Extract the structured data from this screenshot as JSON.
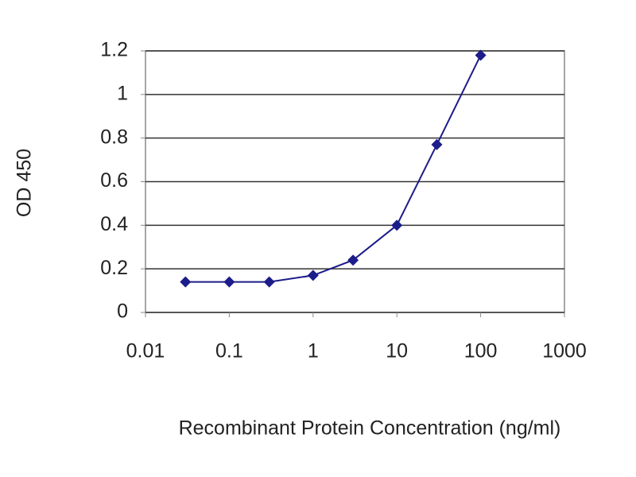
{
  "chart_data": {
    "type": "line",
    "x_label": "Recombinant Protein Concentration (ng/ml)",
    "y_label": "OD 450",
    "x": [
      0.03,
      0.1,
      0.3,
      1,
      3,
      10,
      30,
      100
    ],
    "values": [
      0.14,
      0.14,
      0.14,
      0.17,
      0.24,
      0.4,
      0.77,
      1.18
    ],
    "color": "#1c1c8a",
    "xscale": "log",
    "xlim": [
      0.01,
      1000
    ],
    "xticks": [
      0.01,
      0.1,
      1,
      10,
      100,
      1000
    ],
    "ylim": [
      0,
      1.2
    ],
    "yticks": [
      0,
      0.2,
      0.4,
      0.6,
      0.8,
      1,
      1.2
    ],
    "grid": true
  }
}
